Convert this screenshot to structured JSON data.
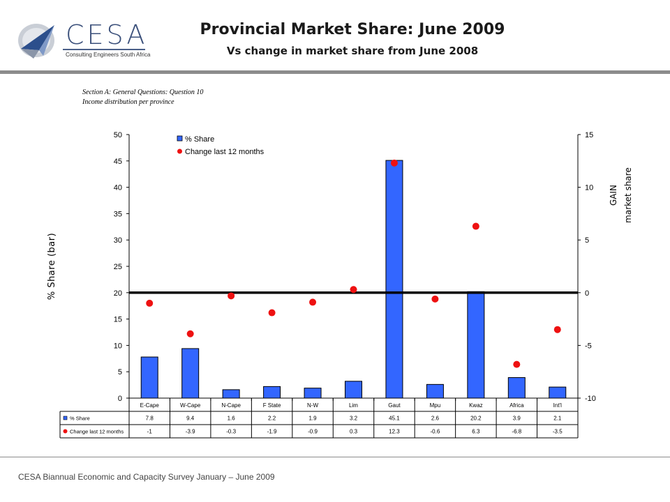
{
  "header": {
    "logo_text": "CESA",
    "logo_subtitle": "Consulting Engineers South Africa",
    "title": "Provincial Market Share: June 2009",
    "subtitle": "Vs change in market share from June 2008"
  },
  "section": {
    "line1": "Section A: General Questions: Question 10",
    "line2": "Income distribution per province"
  },
  "chart_data": {
    "type": "bar",
    "categories": [
      "E-Cape",
      "W-Cape",
      "N-Cape",
      "F State",
      "N-W",
      "Lim",
      "Gaut",
      "Mpu",
      "Kwaz",
      "Africa",
      "Int'l"
    ],
    "series": [
      {
        "name": "% Share",
        "type": "bar",
        "axis": "left",
        "color": "#3366ff",
        "values": [
          7.8,
          9.4,
          1.6,
          2.2,
          1.9,
          3.2,
          45.1,
          2.6,
          20.2,
          3.9,
          2.1
        ],
        "table_labels": [
          "7.8",
          "9.4",
          "1.6",
          "2.2",
          "1.9",
          "3.2",
          "45.1",
          "2.6",
          "20.2",
          "3.9",
          "2.1"
        ]
      },
      {
        "name": "Change last 12 months",
        "type": "scatter",
        "axis": "right",
        "color": "#ee1111",
        "values": [
          -1,
          -3.9,
          -0.3,
          -1.9,
          -0.9,
          0.3,
          12.3,
          -0.6,
          6.3,
          -6.8,
          -3.5
        ],
        "table_labels": [
          "-1",
          "-3.9",
          "-0.3",
          "-1.9",
          "-0.9",
          "0.3",
          "12.3",
          "-0.6",
          "6.3",
          "-6.8",
          "-3.5"
        ]
      }
    ],
    "table_series_labels": [
      "% Share",
      "Change last 12 months"
    ],
    "ylabel": "% Share (bar)",
    "y2label_line1": "GAIN",
    "y2label_line2": "market share",
    "ylim": [
      0,
      50
    ],
    "yticks": [
      0,
      5,
      10,
      15,
      20,
      25,
      30,
      35,
      40,
      45,
      50
    ],
    "y2lim": [
      -10,
      15
    ],
    "y2ticks": [
      -10,
      -5,
      0,
      5,
      10,
      15
    ],
    "y2tick_labels": [
      "-10",
      "-5",
      "0",
      "5",
      "10",
      "15"
    ],
    "zero_line_value": 0,
    "legend_position": "top-left",
    "grid": false,
    "data_table": true
  },
  "footer": {
    "text": "CESA Biannual Economic and Capacity Survey January – June 2009"
  }
}
